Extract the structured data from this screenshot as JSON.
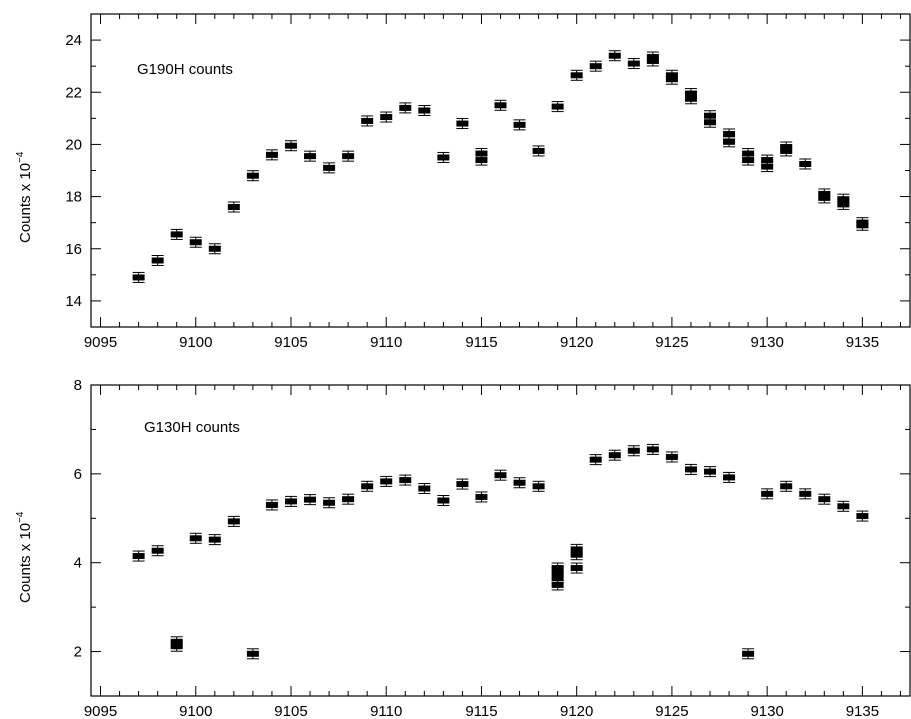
{
  "chart_data": [
    {
      "type": "scatter",
      "annotation": "G190H counts",
      "ylabel_main": "Counts x 10",
      "ylabel_exp": "−4",
      "xlim": [
        9094.5,
        9137.5
      ],
      "ylim": [
        13,
        25
      ],
      "xticks": [
        9095,
        9100,
        9105,
        9110,
        9115,
        9120,
        9125,
        9130,
        9135
      ],
      "yticks": [
        14,
        16,
        18,
        20,
        22,
        24
      ],
      "points": [
        {
          "x": 9097,
          "y": [
            14.9
          ]
        },
        {
          "x": 9098,
          "y": [
            15.55
          ]
        },
        {
          "x": 9099,
          "y": [
            16.55
          ]
        },
        {
          "x": 9100,
          "y": [
            16.25
          ]
        },
        {
          "x": 9101,
          "y": [
            16.0
          ]
        },
        {
          "x": 9102,
          "y": [
            17.6
          ]
        },
        {
          "x": 9103,
          "y": [
            18.8
          ]
        },
        {
          "x": 9104,
          "y": [
            19.6
          ]
        },
        {
          "x": 9105,
          "y": [
            19.95
          ]
        },
        {
          "x": 9106,
          "y": [
            19.55
          ]
        },
        {
          "x": 9107,
          "y": [
            19.1
          ]
        },
        {
          "x": 9108,
          "y": [
            19.55
          ]
        },
        {
          "x": 9109,
          "y": [
            20.9
          ]
        },
        {
          "x": 9110,
          "y": [
            21.05
          ]
        },
        {
          "x": 9111,
          "y": [
            21.4
          ]
        },
        {
          "x": 9112,
          "y": [
            21.3
          ]
        },
        {
          "x": 9113,
          "y": [
            19.5
          ]
        },
        {
          "x": 9114,
          "y": [
            20.8
          ]
        },
        {
          "x": 9115,
          "y": [
            19.4,
            19.65
          ]
        },
        {
          "x": 9116,
          "y": [
            21.5
          ]
        },
        {
          "x": 9117,
          "y": [
            20.75
          ]
        },
        {
          "x": 9118,
          "y": [
            19.75
          ]
        },
        {
          "x": 9119,
          "y": [
            21.45
          ]
        },
        {
          "x": 9120,
          "y": [
            22.65
          ]
        },
        {
          "x": 9121,
          "y": [
            23.0
          ]
        },
        {
          "x": 9122,
          "y": [
            23.4
          ]
        },
        {
          "x": 9123,
          "y": [
            23.1
          ]
        },
        {
          "x": 9124,
          "y": [
            23.2,
            23.35
          ]
        },
        {
          "x": 9125,
          "y": [
            22.5,
            22.65
          ]
        },
        {
          "x": 9126,
          "y": [
            21.75,
            21.95
          ]
        },
        {
          "x": 9127,
          "y": [
            20.85,
            21.1
          ]
        },
        {
          "x": 9128,
          "y": [
            20.1,
            20.4
          ]
        },
        {
          "x": 9129,
          "y": [
            19.4,
            19.65
          ]
        },
        {
          "x": 9130,
          "y": [
            19.15,
            19.4
          ]
        },
        {
          "x": 9131,
          "y": [
            19.75,
            19.9
          ]
        },
        {
          "x": 9132,
          "y": [
            19.25
          ]
        },
        {
          "x": 9133,
          "y": [
            17.95,
            18.1
          ]
        },
        {
          "x": 9134,
          "y": [
            17.7,
            17.9
          ]
        },
        {
          "x": 9135,
          "y": [
            16.9,
            17.0
          ]
        }
      ]
    },
    {
      "type": "scatter",
      "annotation": "G130H counts",
      "ylabel_main": "Counts x 10",
      "ylabel_exp": "−4",
      "xlim": [
        9094.5,
        9137.5
      ],
      "ylim": [
        1,
        8
      ],
      "xticks": [
        9095,
        9100,
        9105,
        9110,
        9115,
        9120,
        9125,
        9130,
        9135
      ],
      "yticks": [
        2,
        4,
        6,
        8
      ],
      "points": [
        {
          "x": 9097,
          "y": [
            4.15
          ]
        },
        {
          "x": 9098,
          "y": [
            4.27
          ]
        },
        {
          "x": 9099,
          "y": [
            2.12,
            2.22
          ]
        },
        {
          "x": 9100,
          "y": [
            4.55
          ]
        },
        {
          "x": 9101,
          "y": [
            4.52
          ]
        },
        {
          "x": 9102,
          "y": [
            4.93
          ]
        },
        {
          "x": 9103,
          "y": [
            1.95
          ]
        },
        {
          "x": 9104,
          "y": [
            5.3
          ]
        },
        {
          "x": 9105,
          "y": [
            5.38
          ]
        },
        {
          "x": 9106,
          "y": [
            5.42
          ]
        },
        {
          "x": 9107,
          "y": [
            5.35
          ]
        },
        {
          "x": 9108,
          "y": [
            5.43
          ]
        },
        {
          "x": 9109,
          "y": [
            5.72
          ]
        },
        {
          "x": 9110,
          "y": [
            5.83
          ]
        },
        {
          "x": 9111,
          "y": [
            5.86
          ]
        },
        {
          "x": 9112,
          "y": [
            5.67
          ]
        },
        {
          "x": 9113,
          "y": [
            5.4
          ]
        },
        {
          "x": 9114,
          "y": [
            5.77
          ]
        },
        {
          "x": 9115,
          "y": [
            5.48
          ]
        },
        {
          "x": 9116,
          "y": [
            5.97
          ]
        },
        {
          "x": 9117,
          "y": [
            5.8
          ]
        },
        {
          "x": 9118,
          "y": [
            5.72
          ]
        },
        {
          "x": 9119,
          "y": [
            3.5,
            3.65,
            3.78,
            3.88
          ]
        },
        {
          "x": 9120,
          "y": [
            3.88,
            4.18,
            4.3
          ]
        },
        {
          "x": 9121,
          "y": [
            6.32
          ]
        },
        {
          "x": 9122,
          "y": [
            6.42
          ]
        },
        {
          "x": 9123,
          "y": [
            6.52
          ]
        },
        {
          "x": 9124,
          "y": [
            6.55
          ]
        },
        {
          "x": 9125,
          "y": [
            6.38
          ]
        },
        {
          "x": 9126,
          "y": [
            6.1
          ]
        },
        {
          "x": 9127,
          "y": [
            6.05
          ]
        },
        {
          "x": 9128,
          "y": [
            5.92
          ]
        },
        {
          "x": 9129,
          "y": [
            1.95
          ]
        },
        {
          "x": 9130,
          "y": [
            5.55
          ]
        },
        {
          "x": 9131,
          "y": [
            5.72
          ]
        },
        {
          "x": 9132,
          "y": [
            5.55
          ]
        },
        {
          "x": 9133,
          "y": [
            5.43
          ]
        },
        {
          "x": 9134,
          "y": [
            5.27
          ]
        },
        {
          "x": 9135,
          "y": [
            5.05
          ]
        }
      ]
    }
  ]
}
